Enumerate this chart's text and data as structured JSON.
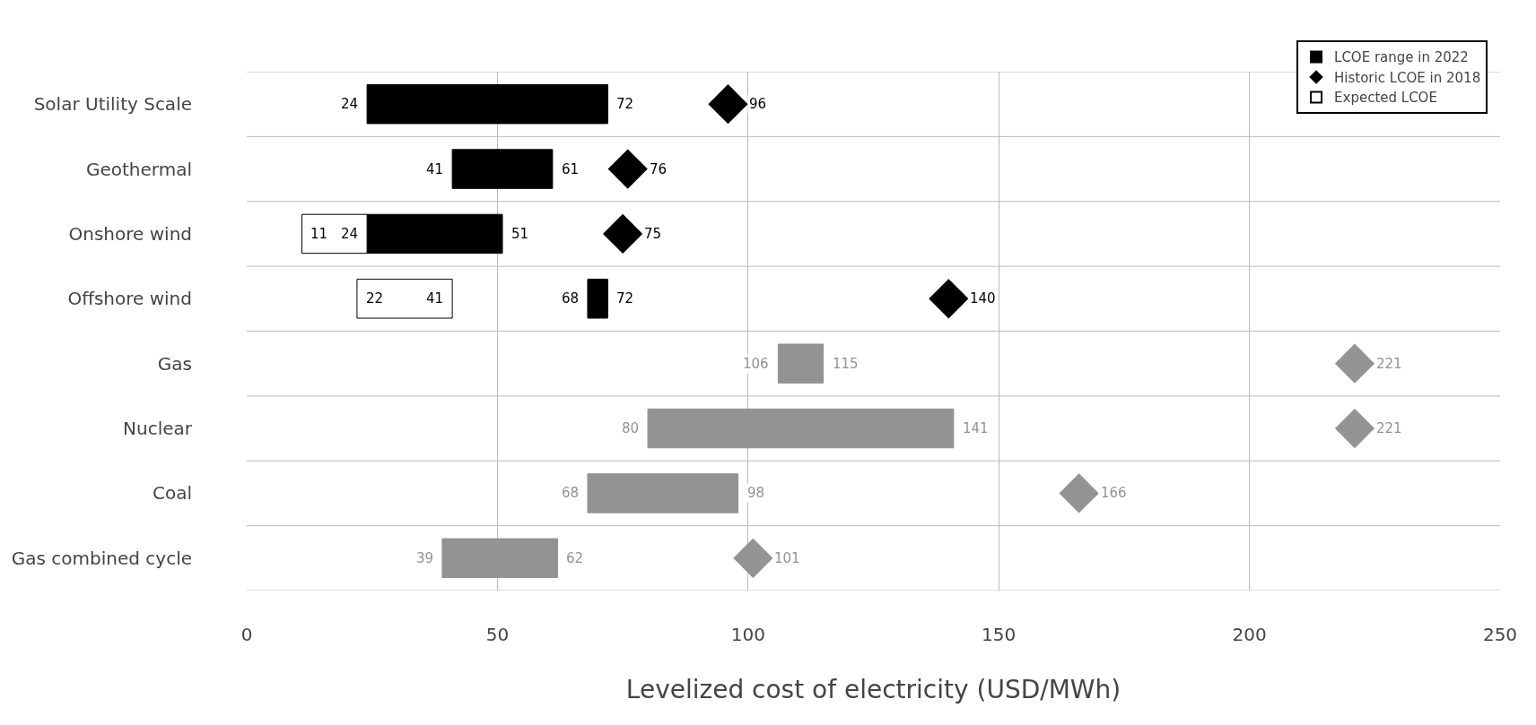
{
  "chart_data": {
    "type": "bar",
    "orientation": "horizontal",
    "xlabel": "Levelized cost of electricity (USD/MWh)",
    "categories": [
      "Solar Utility Scale",
      "Geothermal",
      "Onshore wind",
      "Offshore wind",
      "Gas",
      "Nuclear",
      "Coal",
      "Gas combined cycle"
    ],
    "series": [
      {
        "name": "LCOE range in 2022",
        "base": [
          24,
          41,
          24,
          68,
          106,
          80,
          68,
          39
        ],
        "values": [
          48,
          20,
          27,
          4,
          9,
          61,
          30,
          23
        ],
        "colors": [
          "#000000",
          "#000000",
          "#000000",
          "#000000",
          "#939393",
          "#939393",
          "#939393",
          "#939393"
        ]
      },
      {
        "name": "Historic LCOE in 2018",
        "type": "scatter",
        "marker": "diamond",
        "values": [
          96,
          76,
          75,
          140,
          221,
          221,
          166,
          101
        ],
        "colors": [
          "#000000",
          "#000000",
          "#000000",
          "#000000",
          "#939393",
          "#939393",
          "#939393",
          "#939393"
        ]
      },
      {
        "name": "Expected LCOE",
        "base": [
          null,
          null,
          11,
          22,
          null,
          null,
          null,
          null
        ],
        "values": [
          null,
          null,
          13,
          19,
          null,
          null,
          null,
          null
        ],
        "color": "#ffffff"
      }
    ],
    "annotations": [
      {
        "text": "24",
        "x": 24,
        "y": "Solar Utility Scale"
      },
      {
        "text": "72",
        "x": 72,
        "y": "Solar Utility Scale"
      },
      {
        "text": "96",
        "x": 96,
        "y": "Solar Utility Scale"
      },
      {
        "text": "41",
        "x": 41,
        "y": "Geothermal"
      },
      {
        "text": "61",
        "x": 61,
        "y": "Geothermal"
      },
      {
        "text": "76",
        "x": 76,
        "y": "Geothermal"
      },
      {
        "text": "11",
        "x": 11,
        "y": "Onshore wind"
      },
      {
        "text": "24",
        "x": 24,
        "y": "Onshore wind"
      },
      {
        "text": "51",
        "x": 51,
        "y": "Onshore wind"
      },
      {
        "text": "75",
        "x": 75,
        "y": "Onshore wind"
      },
      {
        "text": "22",
        "x": 22,
        "y": "Offshore wind"
      },
      {
        "text": "41",
        "x": 41,
        "y": "Offshore wind"
      },
      {
        "text": "68",
        "x": 68,
        "y": "Offshore wind"
      },
      {
        "text": "72",
        "x": 72,
        "y": "Offshore wind"
      },
      {
        "text": "140",
        "x": 140,
        "y": "Offshore wind"
      },
      {
        "text": "106",
        "x": 106,
        "y": "Gas"
      },
      {
        "text": "115",
        "x": 115,
        "y": "Gas"
      },
      {
        "text": "221",
        "x": 221,
        "y": "Gas"
      },
      {
        "text": "80",
        "x": 80,
        "y": "Nuclear"
      },
      {
        "text": "141",
        "x": 141,
        "y": "Nuclear"
      },
      {
        "text": "221",
        "x": 221,
        "y": "Nuclear"
      },
      {
        "text": "68",
        "x": 68,
        "y": "Coal"
      },
      {
        "text": "98",
        "x": 98,
        "y": "Coal"
      },
      {
        "text": "166",
        "x": 166,
        "y": "Coal"
      },
      {
        "text": "39",
        "x": 39,
        "y": "Gas combined cycle"
      },
      {
        "text": "62",
        "x": 62,
        "y": "Gas combined cycle"
      },
      {
        "text": "101",
        "x": 101,
        "y": "Gas combined cycle"
      }
    ],
    "xlim": [
      0,
      250
    ],
    "xticks": [
      0,
      50,
      100,
      150,
      200,
      250
    ],
    "grid": true,
    "legend": "top right"
  }
}
